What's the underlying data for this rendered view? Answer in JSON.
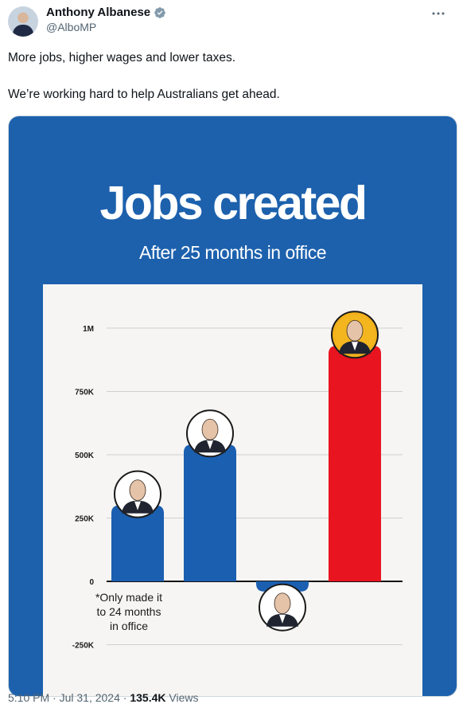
{
  "author": {
    "name": "Anthony Albanese",
    "handle": "@AlboMP",
    "avatar_icon": "avatar-portrait",
    "verified_icon": "verified-badge-icon"
  },
  "post": {
    "line1": "More jobs, higher wages and lower taxes.",
    "line2": "We’re working hard to help Australians get ahead."
  },
  "graphic": {
    "headline": "Jobs created",
    "subhead": "After 25 months in office",
    "note_lines": [
      "*Only made it",
      "to 24 months",
      "in office"
    ],
    "background_color": "#1d61ad"
  },
  "chart_data": {
    "type": "bar",
    "title": "Jobs created",
    "subtitle": "After 25 months in office",
    "categories": [
      "",
      "",
      "",
      ""
    ],
    "values": [
      300000,
      540000,
      -40000,
      930000
    ],
    "colors": [
      "#1b5fb0",
      "#1b5fb0",
      "#1b5fb0",
      "#e8141f"
    ],
    "ylim": [
      -250000,
      1000000
    ],
    "yticks": [
      {
        "value": 1000000,
        "label": "1M"
      },
      {
        "value": 750000,
        "label": "750K"
      },
      {
        "value": 500000,
        "label": "500K"
      },
      {
        "value": 250000,
        "label": "250K"
      },
      {
        "value": 0,
        "label": "0"
      },
      {
        "value": -250000,
        "label": "-250K"
      }
    ],
    "grid": true,
    "bar_icons": [
      "portrait-icon-1",
      "portrait-icon-2",
      "portrait-icon-3",
      "portrait-icon-4"
    ]
  },
  "footer": {
    "time": "5:10 PM",
    "sep1": "·",
    "date": "Jul 31, 2024",
    "sep2": "·",
    "views_count": "135.4K",
    "views_label": "Views"
  }
}
